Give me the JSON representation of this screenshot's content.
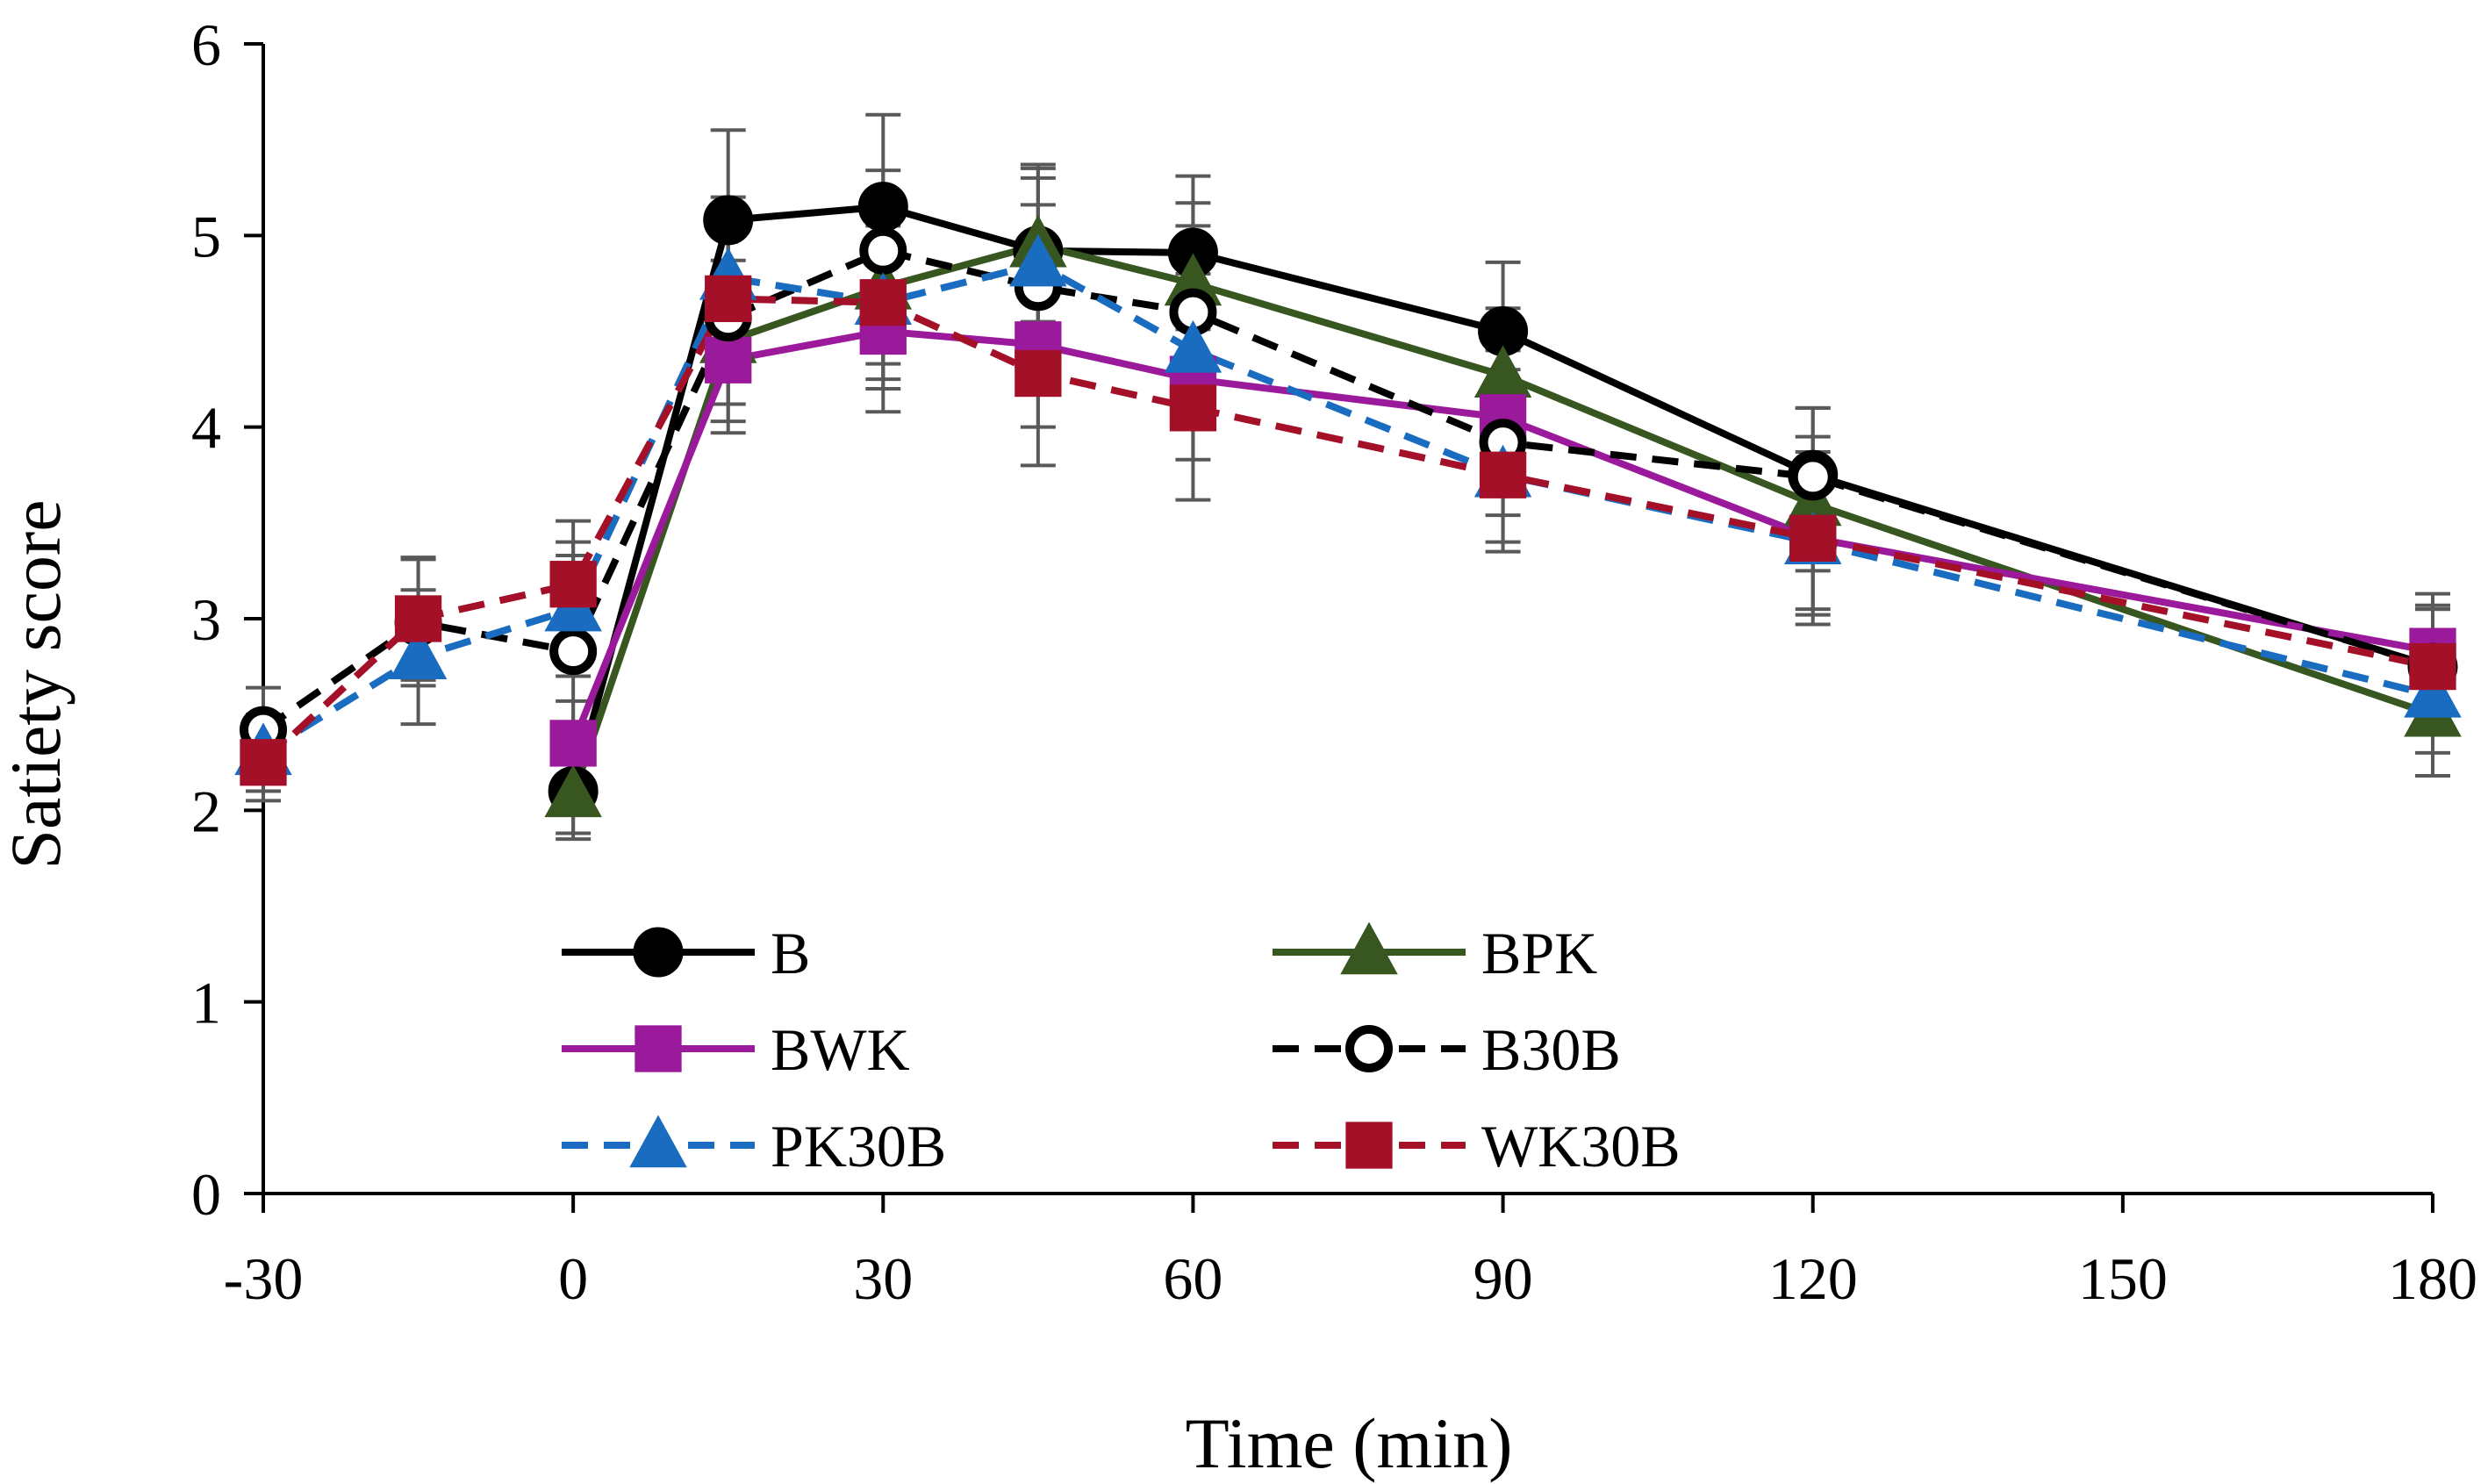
{
  "chart_data": {
    "type": "line",
    "title": "",
    "xlabel": "Time (min)",
    "ylabel": "Satiety score",
    "xlim": [
      -30,
      180
    ],
    "ylim": [
      0,
      6
    ],
    "grid": false,
    "legend_position": "bottom-center",
    "x_ticks": [
      "-30",
      "0",
      "30",
      "60",
      "90",
      "120",
      "150",
      "180"
    ],
    "x_tick_values": [
      -30,
      0,
      30,
      60,
      90,
      120,
      150,
      180
    ],
    "y_ticks": [
      "0",
      "1",
      "2",
      "3",
      "4",
      "5",
      "6"
    ],
    "y_tick_values": [
      0,
      1,
      2,
      3,
      4,
      5,
      6
    ],
    "series": [
      {
        "name": "B",
        "color": "#000000",
        "dash": "solid",
        "marker": "circle-filled",
        "x": [
          0,
          15,
          30,
          45,
          60,
          90,
          120,
          180
        ],
        "y": [
          2.1,
          5.08,
          5.15,
          4.92,
          4.91,
          4.5,
          3.75,
          2.75
        ],
        "err": [
          0.25,
          0.47,
          0.48,
          0.45,
          0.4,
          0.36,
          0.35,
          0.3
        ]
      },
      {
        "name": "BPK",
        "color": "#38561f",
        "dash": "solid",
        "marker": "triangle-filled",
        "x": [
          0,
          15,
          30,
          45,
          60,
          90,
          120,
          180
        ],
        "y": [
          2.08,
          4.45,
          4.73,
          4.95,
          4.75,
          4.27,
          3.6,
          2.5
        ],
        "err": [
          0.2,
          0.42,
          0.4,
          0.4,
          0.42,
          0.35,
          0.35,
          0.32
        ]
      },
      {
        "name": "BWK",
        "color": "#9b1a9b",
        "dash": "solid",
        "marker": "square-filled",
        "x": [
          0,
          15,
          30,
          45,
          60,
          90,
          120,
          180
        ],
        "y": [
          2.35,
          4.35,
          4.5,
          4.43,
          4.25,
          4.05,
          3.42,
          2.83
        ],
        "err": [
          0.22,
          0.38,
          0.42,
          0.43,
          0.42,
          0.35,
          0.37,
          0.3
        ]
      },
      {
        "name": "B30B",
        "color": "#000000",
        "dash": "dashed",
        "marker": "circle-open",
        "x": [
          -30,
          -15,
          0,
          15,
          30,
          45,
          60,
          90,
          120,
          180
        ],
        "y": [
          2.42,
          2.98,
          2.83,
          4.57,
          4.92,
          4.73,
          4.6,
          3.92,
          3.74,
          2.75
        ],
        "err": [
          0.22,
          0.33,
          0.5,
          0.45,
          0.42,
          0.43,
          0.45,
          0.38,
          0.36,
          0.3
        ]
      },
      {
        "name": "PK30B",
        "color": "#1a6cc0",
        "dash": "dashed",
        "marker": "triangle-filled",
        "x": [
          -30,
          -15,
          0,
          15,
          30,
          45,
          60,
          90,
          120,
          180
        ],
        "y": [
          2.3,
          2.8,
          3.05,
          4.78,
          4.65,
          4.85,
          4.4,
          3.75,
          3.4,
          2.6
        ],
        "err": [
          0.2,
          0.35,
          0.35,
          0.42,
          0.4,
          0.45,
          0.4,
          0.35,
          0.38,
          0.3
        ]
      },
      {
        "name": "WK30B",
        "color": "#a51029",
        "dash": "dashed",
        "marker": "square-filled",
        "x": [
          -30,
          -15,
          0,
          15,
          30,
          45,
          60,
          90,
          120,
          180
        ],
        "y": [
          2.25,
          3.0,
          3.18,
          4.67,
          4.65,
          4.28,
          4.1,
          3.75,
          3.42,
          2.75
        ],
        "err": [
          0.2,
          0.32,
          0.33,
          0.42,
          0.45,
          0.48,
          0.48,
          0.4,
          0.45,
          0.32
        ]
      }
    ],
    "legend": [
      [
        "B",
        "BPK"
      ],
      [
        "BWK",
        "B30B"
      ],
      [
        "PK30B",
        "WK30B"
      ]
    ]
  }
}
